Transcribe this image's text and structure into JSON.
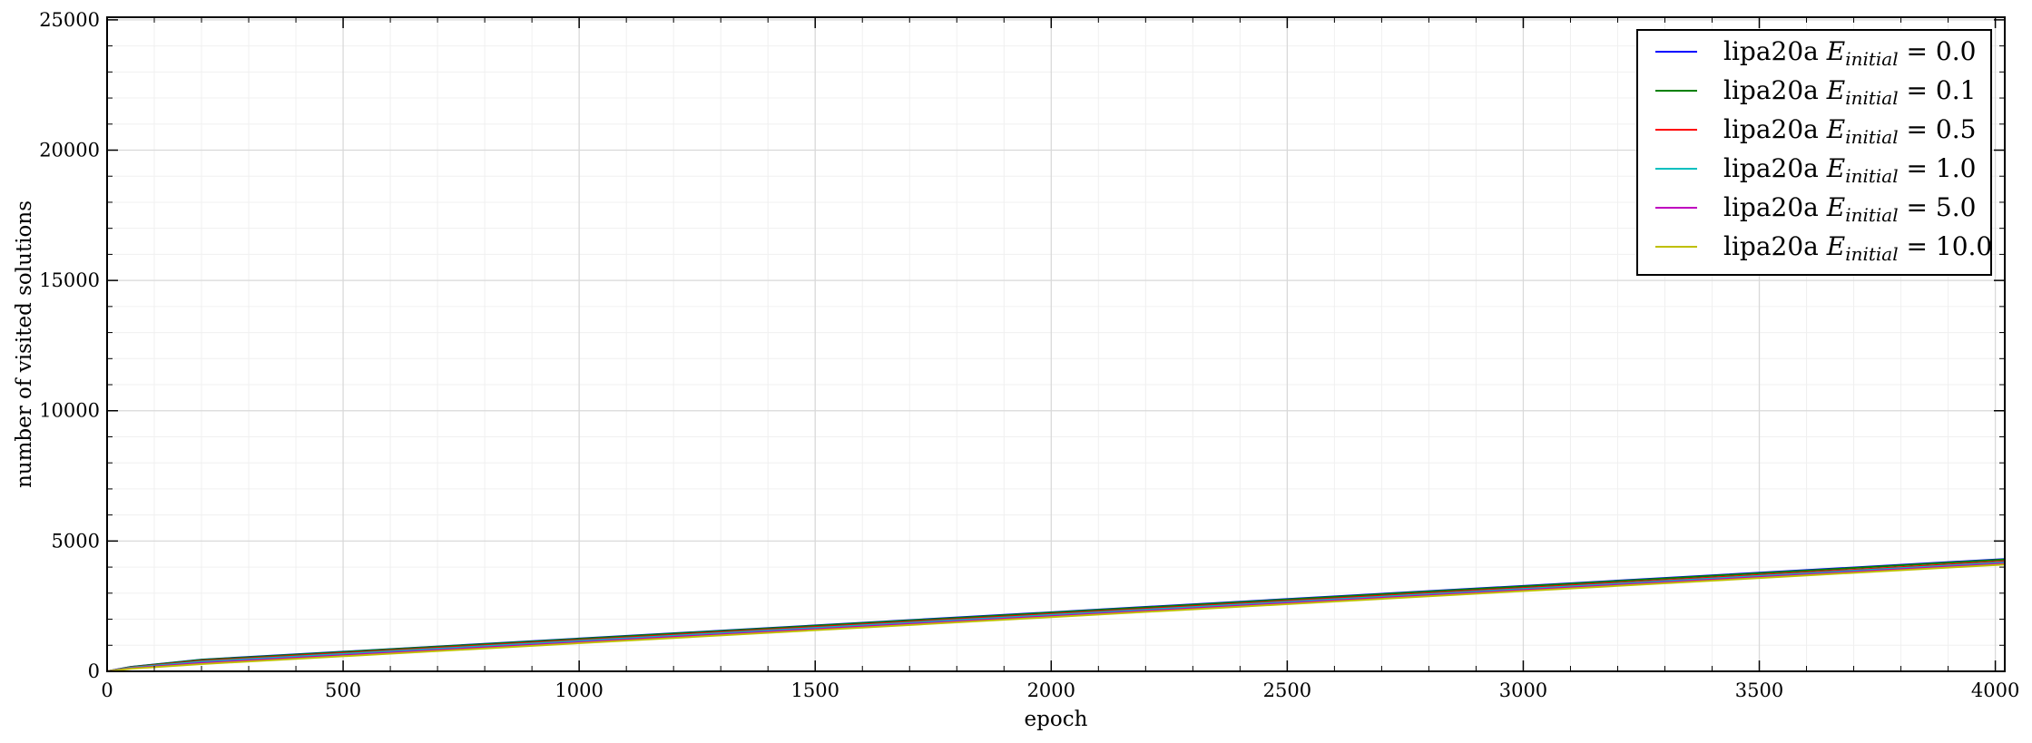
{
  "chart_data": {
    "type": "line",
    "title": "",
    "xlabel": "epoch",
    "ylabel": "number of visited solutions",
    "xlim": [
      0,
      4020
    ],
    "ylim": [
      0,
      25100
    ],
    "xticks": [
      0,
      500,
      1000,
      1500,
      2000,
      2500,
      3000,
      3500,
      4000
    ],
    "yticks": [
      0,
      5000,
      10000,
      15000,
      20000,
      25000
    ],
    "grid": true,
    "minor_grid": true,
    "legend_position": "top-right",
    "legend_prefix": "lipa20a",
    "legend_var": "E",
    "legend_sub": "initial",
    "series": [
      {
        "name": "lipa20a E_initial = 0.0",
        "label_value": "0.0",
        "color": "#0000ff",
        "x": [
          0,
          50,
          200,
          4020
        ],
        "y": [
          0,
          170,
          450,
          4310
        ]
      },
      {
        "name": "lipa20a E_initial = 0.1",
        "label_value": "0.1",
        "color": "#008000",
        "x": [
          0,
          50,
          200,
          4020
        ],
        "y": [
          0,
          165,
          440,
          4290
        ]
      },
      {
        "name": "lipa20a E_initial = 0.5",
        "label_value": "0.5",
        "color": "#ff0000",
        "x": [
          0,
          50,
          200,
          4020
        ],
        "y": [
          0,
          150,
          400,
          4220
        ]
      },
      {
        "name": "lipa20a E_initial = 1.0",
        "label_value": "1.0",
        "color": "#00bfbf",
        "x": [
          0,
          50,
          200,
          4020
        ],
        "y": [
          0,
          140,
          370,
          4180
        ]
      },
      {
        "name": "lipa20a E_initial = 5.0",
        "label_value": "5.0",
        "color": "#bf00bf",
        "x": [
          0,
          50,
          200,
          4020
        ],
        "y": [
          0,
          120,
          320,
          4140
        ]
      },
      {
        "name": "lipa20a E_initial = 10.0",
        "label_value": "10.0",
        "color": "#bfbf00",
        "x": [
          0,
          50,
          200,
          4020
        ],
        "y": [
          0,
          100,
          280,
          4100
        ]
      }
    ]
  }
}
